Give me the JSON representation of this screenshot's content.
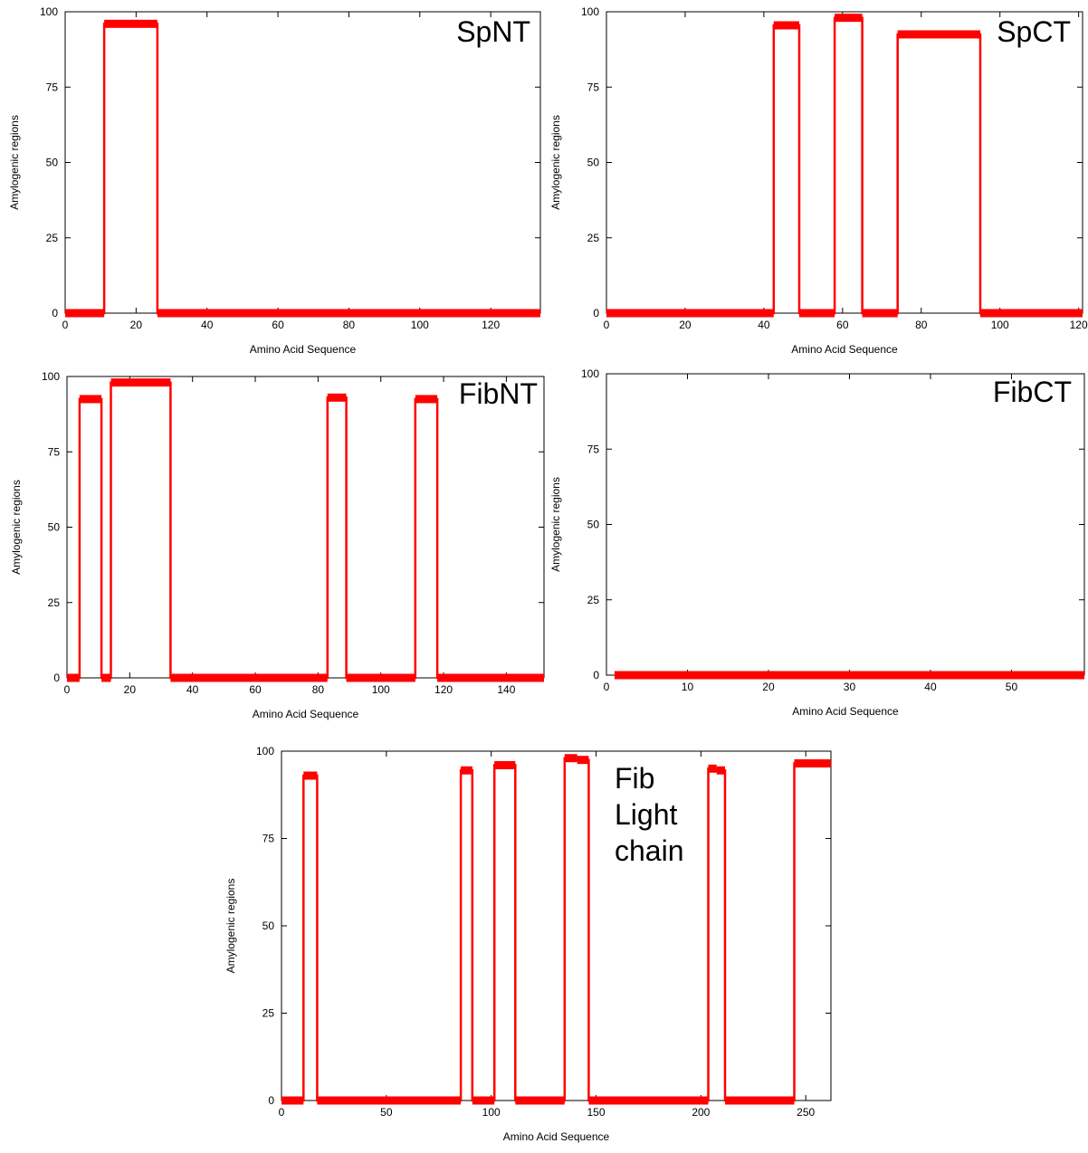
{
  "chart_data": [
    {
      "type": "line",
      "title": "SpNT",
      "xlabel": "Amino Acid Sequence",
      "ylabel": "Amylogenic regions",
      "xlim": [
        0,
        134
      ],
      "ylim": [
        0,
        100
      ],
      "xticks": [
        0,
        20,
        40,
        60,
        80,
        100,
        120
      ],
      "yticks": [
        0,
        25,
        50,
        75,
        100
      ],
      "grid": false,
      "color": "#ff0000",
      "segments": [
        {
          "start": 0,
          "end": 11,
          "value": 0
        },
        {
          "start": 11,
          "end": 26,
          "value": 96
        },
        {
          "start": 26,
          "end": 134,
          "value": 0
        }
      ]
    },
    {
      "type": "line",
      "title": "SpCT",
      "xlabel": "Amino Acid Sequence",
      "ylabel": "Amylogenic regions",
      "xlim": [
        0,
        121
      ],
      "ylim": [
        0,
        100
      ],
      "xticks": [
        0,
        20,
        40,
        60,
        80,
        100,
        120
      ],
      "yticks": [
        0,
        25,
        50,
        75,
        100
      ],
      "grid": false,
      "color": "#ff0000",
      "segments": [
        {
          "start": 0,
          "end": 42.5,
          "value": 0
        },
        {
          "start": 42.5,
          "end": 49,
          "value": 95.5
        },
        {
          "start": 49,
          "end": 58,
          "value": 0
        },
        {
          "start": 58,
          "end": 65,
          "value": 98
        },
        {
          "start": 65,
          "end": 74,
          "value": 0
        },
        {
          "start": 74,
          "end": 95,
          "value": 92.5
        },
        {
          "start": 95,
          "end": 121,
          "value": 0
        }
      ]
    },
    {
      "type": "line",
      "title": "FibNT",
      "xlabel": "Amino Acid Sequence",
      "ylabel": "Amylogenic regions",
      "xlim": [
        0,
        152
      ],
      "ylim": [
        0,
        100
      ],
      "xticks": [
        0,
        20,
        40,
        60,
        80,
        100,
        120,
        140
      ],
      "yticks": [
        0,
        25,
        50,
        75,
        100
      ],
      "grid": false,
      "color": "#ff0000",
      "segments": [
        {
          "start": 0,
          "end": 4,
          "value": 0
        },
        {
          "start": 4,
          "end": 11,
          "value": 92.5
        },
        {
          "start": 11,
          "end": 14,
          "value": 0
        },
        {
          "start": 14,
          "end": 33,
          "value": 98
        },
        {
          "start": 33,
          "end": 83,
          "value": 0
        },
        {
          "start": 83,
          "end": 89,
          "value": 93
        },
        {
          "start": 89,
          "end": 111,
          "value": 0
        },
        {
          "start": 111,
          "end": 118,
          "value": 92.5
        },
        {
          "start": 118,
          "end": 152,
          "value": 0
        }
      ]
    },
    {
      "type": "line",
      "title": "FibCT",
      "xlabel": "Amino Acid Sequence",
      "ylabel": "Amylogenic regions",
      "xlim": [
        0,
        59
      ],
      "ylim": [
        0,
        100
      ],
      "xticks": [
        0,
        10,
        20,
        30,
        40,
        50
      ],
      "yticks": [
        0,
        25,
        50,
        75,
        100
      ],
      "grid": false,
      "color": "#ff0000",
      "segments": [
        {
          "start": 1,
          "end": 59,
          "value": 0
        }
      ]
    },
    {
      "type": "line",
      "title": "Fib\nLight\nchain",
      "xlabel": "Amino Acid Sequence",
      "ylabel": "Amylogenic regions",
      "xlim": [
        0,
        262
      ],
      "ylim": [
        0,
        100
      ],
      "xticks": [
        0,
        50,
        100,
        150,
        200,
        250
      ],
      "yticks": [
        0,
        25,
        50,
        75,
        100
      ],
      "grid": false,
      "color": "#ff0000",
      "segments": [
        {
          "start": 0,
          "end": 10.5,
          "value": 0
        },
        {
          "start": 10.5,
          "end": 17,
          "value": 93
        },
        {
          "start": 17,
          "end": 85.5,
          "value": 0
        },
        {
          "start": 85.5,
          "end": 91,
          "value": 94.5
        },
        {
          "start": 91,
          "end": 101.5,
          "value": 0
        },
        {
          "start": 101.5,
          "end": 111.5,
          "value": 96
        },
        {
          "start": 111.5,
          "end": 135,
          "value": 0
        },
        {
          "start": 135,
          "end": 141,
          "value": 98
        },
        {
          "start": 141,
          "end": 146.5,
          "value": 97.5
        },
        {
          "start": 146.5,
          "end": 203.5,
          "value": 0
        },
        {
          "start": 203.5,
          "end": 207.5,
          "value": 95
        },
        {
          "start": 207.5,
          "end": 211.5,
          "value": 94.5
        },
        {
          "start": 211.5,
          "end": 244.5,
          "value": 0
        },
        {
          "start": 244.5,
          "end": 262,
          "value": 96.5
        }
      ]
    }
  ]
}
